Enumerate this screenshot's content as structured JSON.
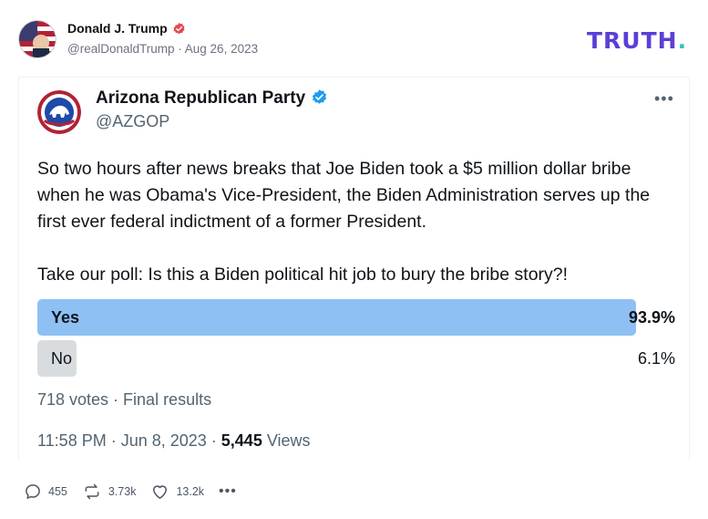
{
  "post": {
    "author_name": "Donald J. Trump",
    "author_handle": "@realDonaldTrump",
    "separator": "·",
    "date": "Aug 26, 2023",
    "brand_logo": "TRUTH",
    "brand_dot": ".",
    "colors": {
      "brand": "#5b3fd6",
      "brand_dot": "#2ec4b6",
      "verified": "#e5484d"
    }
  },
  "tweet": {
    "account_name": "Arizona Republican Party",
    "account_handle": "@AZGOP",
    "more": "•••",
    "paragraphs": [
      "So two hours after news breaks that Joe Biden took a $5 million dollar bribe when he was Obama's Vice-President, the Biden Administration serves up the first ever federal indictment of a former President.",
      "Take our poll: Is this a Biden political hit job to bury the bribe story?!"
    ],
    "poll": {
      "options": [
        {
          "label": "Yes",
          "percent_text": "93.9%",
          "percent": 93.9
        },
        {
          "label": "No",
          "percent_text": "6.1%",
          "percent": 6.1
        }
      ],
      "summary": "718 votes · Final results"
    },
    "time": "11:58 PM · Jun 8, 2023 · ",
    "views_count": "5,445",
    "views_label": " Views",
    "colors": {
      "poll_winner": "#8ec0f3",
      "poll_other": "#d8dcdf",
      "verified": "#1d9bf0"
    }
  },
  "actions": {
    "replies": "455",
    "retruths": "3.73k",
    "likes": "13.2k",
    "more": "•••",
    "icons": [
      "reply-icon",
      "retruth-icon",
      "like-icon",
      "more-icon"
    ]
  }
}
